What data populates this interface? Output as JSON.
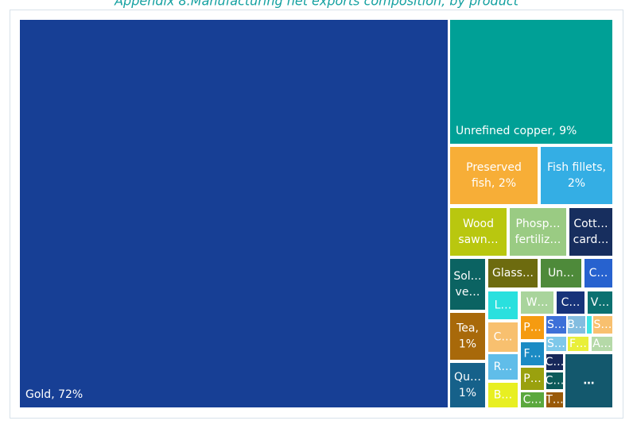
{
  "chart_data": {
    "type": "treemap",
    "title": "Appendix 8.Manufacturing net exports composition, by product",
    "tiles": [
      {
        "label": [
          "Gold, 72%"
        ],
        "value": 72,
        "color": "#173f95"
      },
      {
        "label": [
          "Unrefined copper, 9%"
        ],
        "value": 9,
        "color": "#00a096"
      },
      {
        "label": [
          "Preserved",
          "fish, 2%"
        ],
        "value": 2,
        "color": "#f7ae37"
      },
      {
        "label": [
          "Fish fillets,",
          "2%"
        ],
        "value": 2,
        "color": "#34aee4"
      },
      {
        "label": [
          "Wood",
          "sawn…"
        ],
        "value": 1.2,
        "color": "#b9c70f"
      },
      {
        "label": [
          "Phosp…",
          "fertiliz…"
        ],
        "value": 1.2,
        "color": "#9acb83"
      },
      {
        "label": [
          "Cott…",
          "card…"
        ],
        "value": 0.9,
        "color": "#172e5e"
      },
      {
        "label": [
          "Sol…",
          "ve…"
        ],
        "value": 0.8,
        "color": "#0b6362"
      },
      {
        "label": [
          "Tea,",
          "1%"
        ],
        "value": 1,
        "color": "#a8690a"
      },
      {
        "label": [
          "Qu…",
          "1%"
        ],
        "value": 1,
        "color": "#16618a"
      },
      {
        "label": [
          "Glass…"
        ],
        "value": 0.6,
        "color": "#6d6b0f"
      },
      {
        "label": [
          "Un…"
        ],
        "value": 0.5,
        "color": "#4e8a3a"
      },
      {
        "label": [
          "C…"
        ],
        "value": 0.35,
        "color": "#2762cf"
      },
      {
        "label": [
          "L…"
        ],
        "value": 0.36,
        "color": "#2ae0de"
      },
      {
        "label": [
          "W…"
        ],
        "value": 0.32,
        "color": "#a9d49c"
      },
      {
        "label": [
          "C…"
        ],
        "value": 0.27,
        "color": "#17337a"
      },
      {
        "label": [
          "V…"
        ],
        "value": 0.24,
        "color": "#0b7070"
      },
      {
        "label": [
          "C…"
        ],
        "value": 0.38,
        "color": "#f8c06f"
      },
      {
        "label": [
          "R…"
        ],
        "value": 0.33,
        "color": "#60bde9"
      },
      {
        "label": [
          "B…"
        ],
        "value": 0.32,
        "color": "#e8ef22"
      },
      {
        "label": [
          "P…"
        ],
        "value": 0.24,
        "color": "#f59b10"
      },
      {
        "label": [
          "F…"
        ],
        "value": 0.24,
        "color": "#1b8bc4"
      },
      {
        "label": [
          "P…"
        ],
        "value": 0.22,
        "color": "#9aa10e"
      },
      {
        "label": [
          "C…"
        ],
        "value": 0.15,
        "color": "#5ba83e"
      },
      {
        "label": [
          "S…"
        ],
        "value": 0.15,
        "color": "#3d70d8"
      },
      {
        "label": [
          "B…"
        ],
        "value": 0.13,
        "color": "#83bde0"
      },
      {
        "label": [
          null
        ],
        "value": 0.04,
        "color": "#3fe4e4"
      },
      {
        "label": [
          "S…"
        ],
        "value": 0.12,
        "color": "#f8c06f"
      },
      {
        "label": [
          "S…"
        ],
        "value": 0.13,
        "color": "#7ec8ea"
      },
      {
        "label": [
          "F…"
        ],
        "value": 0.13,
        "color": "#e9ef3a"
      },
      {
        "label": [
          "A…"
        ],
        "value": 0.13,
        "color": "#b5d9a8"
      },
      {
        "label": [
          "C…"
        ],
        "value": 0.12,
        "color": "#17285a"
      },
      {
        "label": [
          "C…"
        ],
        "value": 0.12,
        "color": "#0b5a5a"
      },
      {
        "label": [
          "T…"
        ],
        "value": 0.11,
        "color": "#9a5a08"
      },
      {
        "label": [
          "…"
        ],
        "value": 1.1,
        "color": "#13586d"
      }
    ]
  }
}
